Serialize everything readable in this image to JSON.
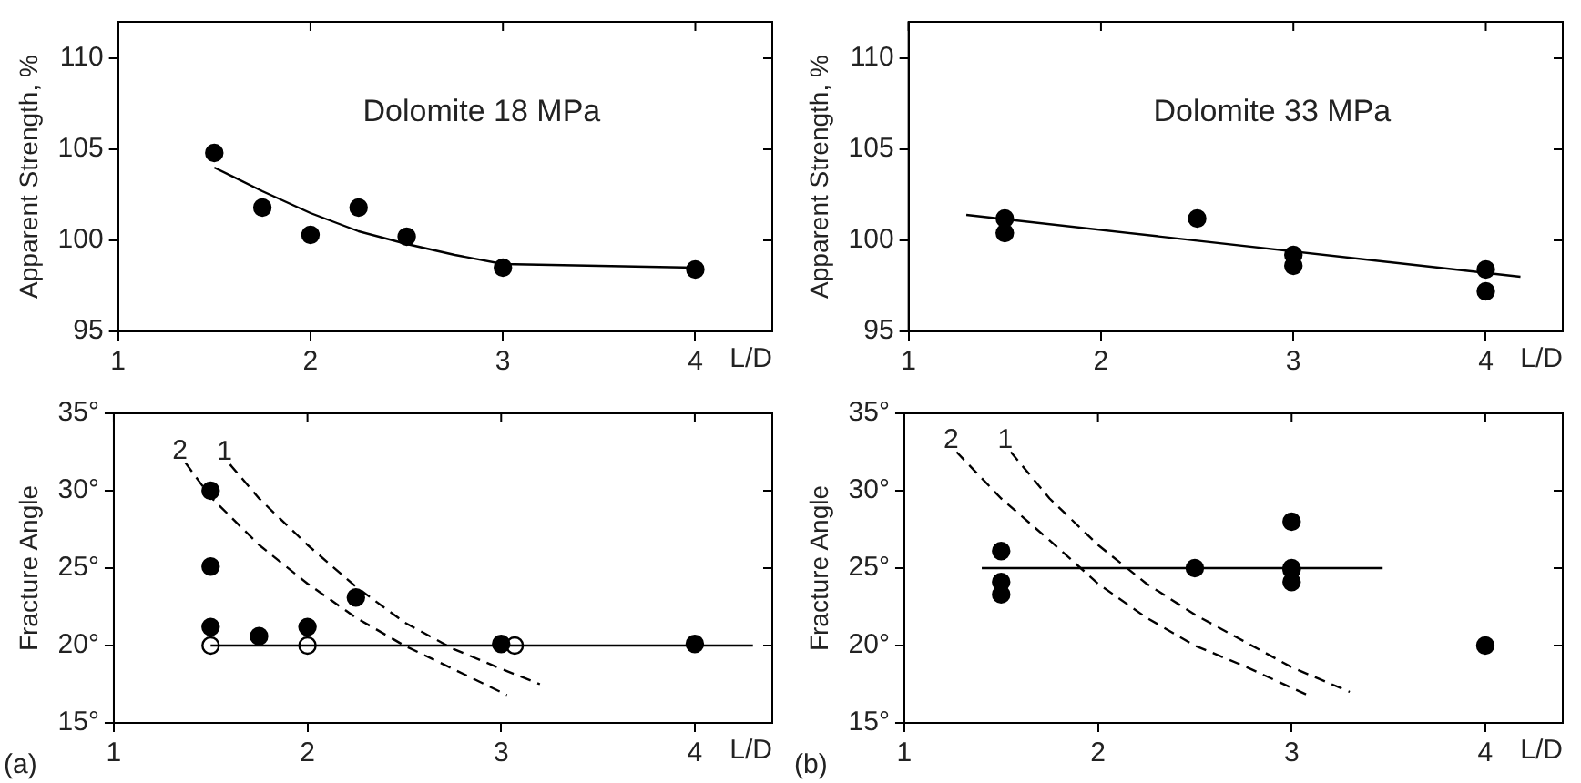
{
  "chart_data": [
    {
      "type": "scatter",
      "title": "Dolomite 18 MPa",
      "xlabel": "L/D",
      "ylabel": "Apparent Strength, %",
      "xlim": [
        1,
        4.4
      ],
      "ylim": [
        95,
        112
      ],
      "xticks": [
        1,
        2,
        3,
        4
      ],
      "yticks": [
        95,
        100,
        105,
        110
      ],
      "grid": false,
      "legend": false,
      "series": [
        {
          "type": "scatter",
          "marker": "circle",
          "color": "#000000",
          "x": [
            1.5,
            1.75,
            2,
            2.25,
            2.5,
            3,
            4
          ],
          "values": [
            104.8,
            101.8,
            100.3,
            101.8,
            100.2,
            98.5,
            98.4
          ]
        },
        {
          "type": "line",
          "color": "#000000",
          "line_style": "solid",
          "x": [
            1.5,
            1.75,
            2,
            2.25,
            2.5,
            2.75,
            3,
            3.5,
            4
          ],
          "values": [
            104,
            102.7,
            101.5,
            100.5,
            99.8,
            99.2,
            98.7,
            98.6,
            98.5
          ]
        }
      ]
    },
    {
      "type": "scatter",
      "title": "Dolomite 33 MPa",
      "xlabel": "L/D",
      "ylabel": "Apparent Strength, %",
      "xlim": [
        1,
        4.4
      ],
      "ylim": [
        95,
        112
      ],
      "xticks": [
        1,
        2,
        3,
        4
      ],
      "yticks": [
        95,
        100,
        105,
        110
      ],
      "grid": false,
      "legend": false,
      "series": [
        {
          "type": "scatter",
          "marker": "circle",
          "color": "#000000",
          "x": [
            1.5,
            1.5,
            2.5,
            3,
            3,
            4,
            4
          ],
          "values": [
            101.2,
            100.4,
            101.2,
            99.2,
            98.6,
            98.4,
            97.2
          ]
        },
        {
          "type": "line",
          "color": "#000000",
          "line_style": "solid",
          "x": [
            1.3,
            4.18
          ],
          "values": [
            101.4,
            98
          ]
        }
      ]
    },
    {
      "type": "scatter",
      "xlabel": "L/D",
      "ylabel": "Fracture Angle",
      "annotations": [
        "(a)"
      ],
      "xlim": [
        1,
        4.4
      ],
      "ylim": [
        15,
        35
      ],
      "xticks": [
        1,
        2,
        3,
        4
      ],
      "yticks": [
        {
          "value": 15,
          "label": "15°"
        },
        {
          "value": 20,
          "label": "20°"
        },
        {
          "value": 25,
          "label": "25°"
        },
        {
          "value": 30,
          "label": "30°"
        },
        {
          "value": 35,
          "label": "35°"
        }
      ],
      "grid": false,
      "legend": false,
      "series": [
        {
          "type": "line",
          "color": "#000000",
          "line_style": "solid",
          "x": [
            1.5,
            4.3
          ],
          "values": [
            20,
            20
          ]
        },
        {
          "type": "line",
          "name": "2",
          "color": "#000000",
          "line_style": "dashed",
          "x": [
            1.37,
            1.5,
            1.75,
            2,
            2.25,
            2.5,
            2.75,
            3.03
          ],
          "values": [
            31.8,
            29.6,
            26.5,
            24,
            21.8,
            20,
            18.5,
            16.8
          ]
        },
        {
          "type": "line",
          "name": "1",
          "color": "#000000",
          "line_style": "dashed",
          "x": [
            1.6,
            1.75,
            2,
            2.25,
            2.5,
            2.75,
            3,
            3.2
          ],
          "values": [
            31.7,
            29.5,
            26.5,
            23.8,
            21.5,
            19.8,
            18.5,
            17.5
          ]
        },
        {
          "type": "scatter",
          "marker": "circle",
          "color": "#000000",
          "x": [
            1.5,
            1.5,
            1.5,
            1.75,
            2,
            2.25,
            3,
            4
          ],
          "values": [
            30,
            25.1,
            21.2,
            20.6,
            21.2,
            23.1,
            20.1,
            20.1
          ]
        },
        {
          "type": "scatter",
          "marker": "circle",
          "color": "#ffffff",
          "x": [
            1.5,
            2,
            3.07
          ],
          "values": [
            20,
            20,
            20
          ]
        }
      ]
    },
    {
      "type": "scatter",
      "xlabel": "L/D",
      "ylabel": "Fracture Angle",
      "annotations": [
        "(b)"
      ],
      "xlim": [
        1,
        4.4
      ],
      "ylim": [
        15,
        35
      ],
      "xticks": [
        1,
        2,
        3,
        4
      ],
      "yticks": [
        {
          "value": 15,
          "label": "15°"
        },
        {
          "value": 20,
          "label": "20°"
        },
        {
          "value": 25,
          "label": "25°"
        },
        {
          "value": 30,
          "label": "30°"
        },
        {
          "value": 35,
          "label": "35°"
        }
      ],
      "grid": false,
      "legend": false,
      "series": [
        {
          "type": "line",
          "color": "#000000",
          "line_style": "solid",
          "x": [
            1.4,
            3.47
          ],
          "values": [
            25,
            25
          ]
        },
        {
          "type": "line",
          "name": "2",
          "color": "#000000",
          "line_style": "dashed",
          "x": [
            1.27,
            1.5,
            1.75,
            2,
            2.25,
            2.5,
            2.75,
            3.1
          ],
          "values": [
            32.5,
            29.5,
            26.8,
            24,
            21.8,
            20,
            18.7,
            16.7
          ]
        },
        {
          "type": "line",
          "name": "1",
          "color": "#000000",
          "line_style": "dashed",
          "x": [
            1.55,
            1.75,
            2,
            2.25,
            2.5,
            2.75,
            3,
            3.3
          ],
          "values": [
            32.5,
            29.5,
            26.5,
            24,
            22,
            20.3,
            18.6,
            17
          ]
        },
        {
          "type": "scatter",
          "marker": "circle",
          "color": "#000000",
          "x": [
            1.5,
            1.5,
            1.5,
            2.5,
            3,
            3,
            3,
            3,
            4
          ],
          "values": [
            26.1,
            24.1,
            23.3,
            25,
            28,
            25,
            24.9,
            24.1,
            20
          ]
        }
      ]
    }
  ]
}
